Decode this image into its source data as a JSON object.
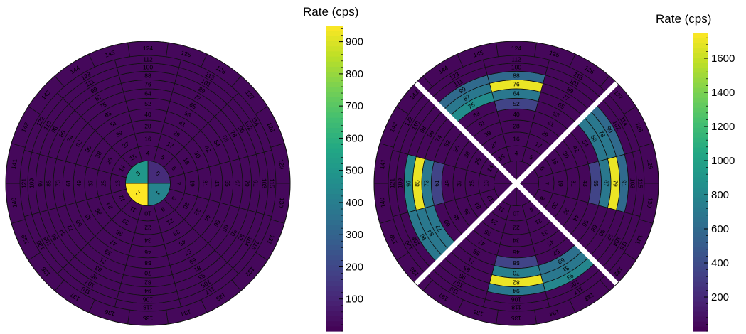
{
  "chart_data": [
    {
      "type": "heatmap",
      "layout": "concentric rings, 11 radial rings, full disc, detector segments 0-145",
      "colorbar": {
        "title": "Rate (cps)",
        "ticks": [
          100,
          200,
          300,
          400,
          500,
          600,
          700,
          800,
          900
        ],
        "range": [
          0,
          950
        ],
        "colormap": "viridis"
      },
      "segment_values": {
        "0": 120,
        "1": 420,
        "2": 950,
        "3": 500
      },
      "background_value": 20,
      "segments": {
        "0": [
          0,
          1,
          2,
          3
        ],
        "1": [
          4,
          5,
          6,
          7,
          8,
          9,
          10,
          11,
          12,
          13,
          14,
          15
        ],
        "2": [
          16,
          17,
          18,
          19,
          20,
          21,
          22,
          23,
          24,
          25,
          26,
          27
        ],
        "3": [
          28,
          29,
          30,
          31,
          32,
          33,
          34,
          35,
          36,
          37,
          38,
          39
        ],
        "4": [
          40,
          41,
          42,
          43,
          44,
          45,
          46,
          47,
          48,
          49,
          50,
          51
        ],
        "5": [
          52,
          53,
          54,
          55,
          56,
          57,
          58,
          59,
          60,
          61,
          62,
          63
        ],
        "6": [
          64,
          65,
          66,
          67,
          68,
          69,
          70,
          71,
          72,
          73,
          74,
          75
        ],
        "7": [
          76,
          77,
          78,
          79,
          80,
          81,
          82,
          83,
          84,
          85,
          86,
          87
        ],
        "8": [
          88,
          89,
          90,
          91,
          92,
          93,
          94,
          95,
          96,
          97,
          98,
          99
        ],
        "9": [
          100,
          101,
          102,
          103,
          104,
          105,
          106,
          107,
          108,
          109,
          110,
          111
        ],
        "10": [
          112,
          113,
          114,
          115,
          116,
          117,
          118,
          119,
          120,
          121,
          122,
          123
        ],
        "11": [
          124,
          125,
          126,
          127,
          128,
          129,
          130,
          131,
          132,
          133,
          134,
          135,
          136,
          137,
          138,
          139,
          140,
          141,
          142,
          143,
          144,
          145
        ]
      }
    },
    {
      "type": "heatmap",
      "layout": "concentric rings split into 4 quadrants, detector segments 4-145",
      "colorbar": {
        "title": "Rate (cps)",
        "ticks": [
          200,
          400,
          600,
          800,
          1000,
          1200,
          1400,
          1600
        ],
        "range": [
          0,
          1750
        ],
        "colormap": "viridis"
      },
      "segment_values": {
        "79": 1700,
        "67": 700,
        "91": 600,
        "55": 350,
        "66": 700,
        "90": 600,
        "78": 700,
        "85": 1700,
        "97": 800,
        "73": 700,
        "61": 350,
        "84": 700,
        "96": 700,
        "72": 700,
        "82": 1700,
        "93": 800,
        "69": 650,
        "58": 350,
        "70": 750,
        "94": 700,
        "81": 700,
        "76": 1700,
        "64": 700,
        "88": 600,
        "52": 350,
        "75": 850,
        "99": 600,
        "87": 700
      },
      "background_value": 30
    }
  ]
}
